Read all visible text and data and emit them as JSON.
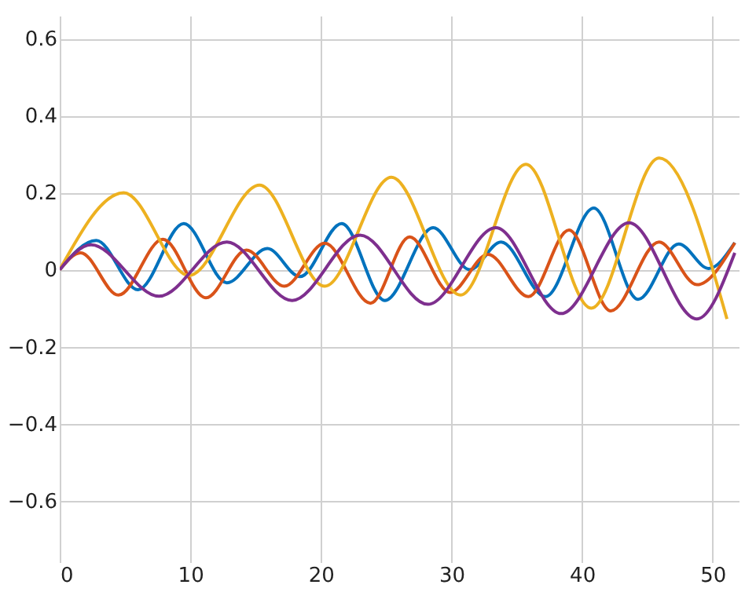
{
  "chart_data": {
    "type": "line",
    "xlim": [
      0,
      52
    ],
    "ylim": [
      -0.76,
      0.66
    ],
    "xticks": [
      0,
      10,
      20,
      30,
      40,
      50
    ],
    "yticks": [
      -0.6,
      -0.4,
      -0.2,
      0,
      0.2,
      0.4,
      0.6
    ],
    "grid": true,
    "line_style": "solid",
    "marker": "none",
    "series": [
      {
        "color": "#0072bd",
        "x": [
          0,
          2.8,
          6.0,
          9.5,
          12.8,
          15.9,
          18.4,
          21.6,
          24.9,
          28.6,
          31.4,
          33.8,
          37.2,
          40.9,
          44.3,
          47.4,
          49.7,
          51.7
        ],
        "values": [
          0,
          0.076,
          -0.052,
          0.12,
          -0.034,
          0.055,
          -0.018,
          0.12,
          -0.08,
          0.109,
          0,
          0.072,
          -0.07,
          0.16,
          -0.077,
          0.067,
          0.003,
          0.07
        ]
      },
      {
        "color": "#d95319",
        "x": [
          0,
          1.6,
          4.5,
          7.9,
          11.2,
          14.3,
          17.2,
          20.3,
          23.8,
          26.8,
          29.9,
          32.8,
          35.9,
          39.0,
          42.2,
          45.9,
          48.8,
          51.7
        ],
        "values": [
          0,
          0.044,
          -0.066,
          0.079,
          -0.073,
          0.051,
          -0.043,
          0.069,
          -0.087,
          0.085,
          -0.059,
          0.04,
          -0.07,
          0.103,
          -0.107,
          0.072,
          -0.039,
          0.07
        ]
      },
      {
        "color": "#edb120",
        "x": [
          0,
          4.9,
          9.9,
          15.3,
          20.3,
          25.4,
          30.7,
          35.7,
          40.7,
          45.9,
          51.1
        ],
        "values": [
          0,
          0.2,
          -0.015,
          0.22,
          -0.043,
          0.24,
          -0.066,
          0.274,
          -0.1,
          0.29,
          -0.128
        ]
      },
      {
        "color": "#7e2f8e",
        "x": [
          0,
          2.4,
          7.6,
          12.8,
          17.8,
          23.0,
          28.2,
          33.4,
          38.4,
          43.6,
          48.8,
          51.7
        ],
        "values": [
          0,
          0.065,
          -0.069,
          0.072,
          -0.08,
          0.09,
          -0.09,
          0.109,
          -0.114,
          0.122,
          -0.128,
          0.044
        ]
      }
    ]
  }
}
